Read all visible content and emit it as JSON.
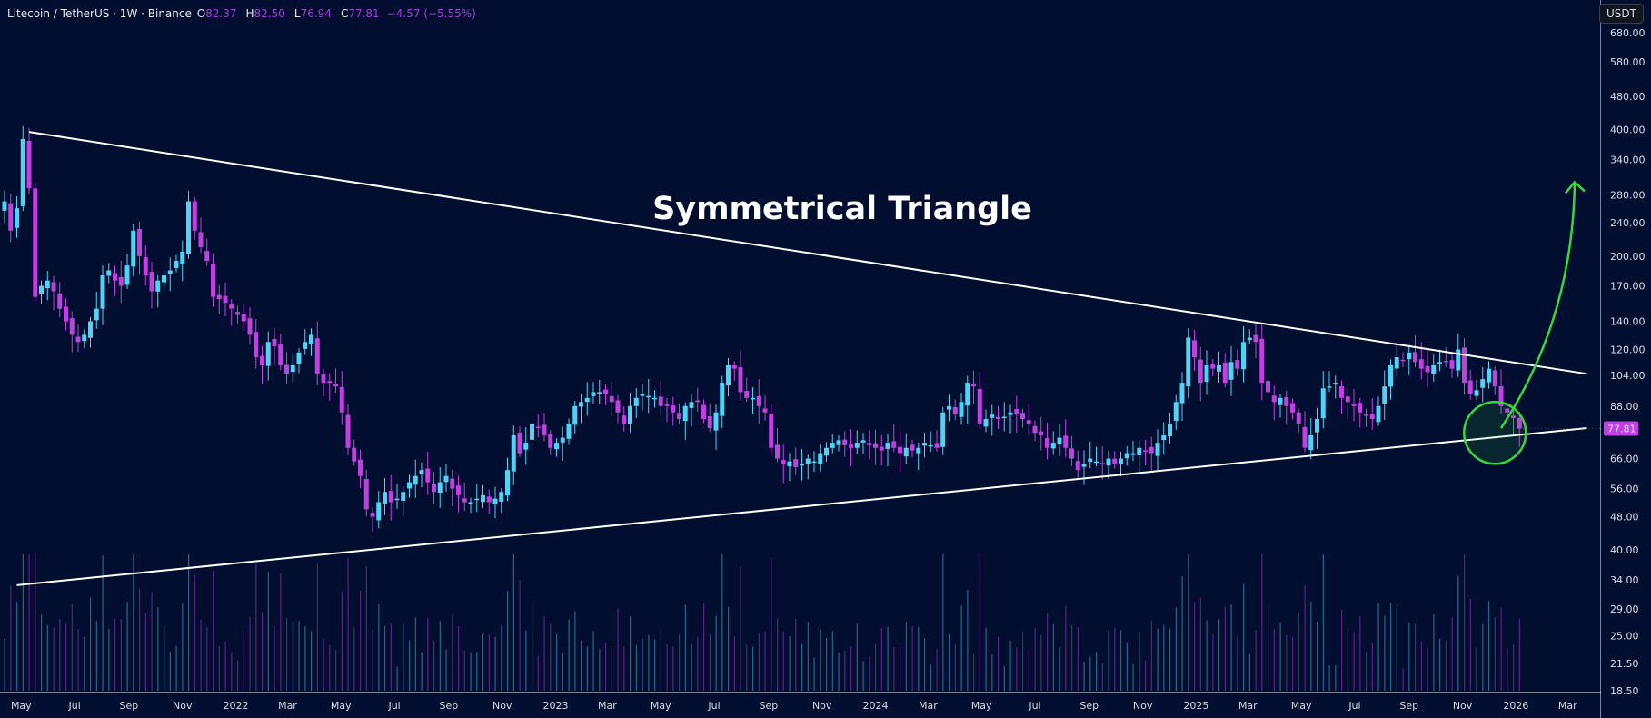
{
  "header": {
    "symbol": "Litecoin / TetherUS · 1W · Binance",
    "o_label": "O",
    "open": "82.37",
    "h_label": "H",
    "high": "82.50",
    "l_label": "L",
    "low": "76.94",
    "c_label": "C",
    "close": "77.81",
    "change": "−4.57 (−5.55%)"
  },
  "currency_button": "USDT",
  "colors": {
    "background": "#020e2f",
    "up": "#4fd3f7",
    "down": "#c23fe3",
    "trendline": "#ffffff",
    "annotation": "#36d83a",
    "last_price_tag": "#c23fe3"
  },
  "chart_data": {
    "type": "candlestick",
    "scale": "log",
    "title": "Symmetrical Triangle",
    "first_week": "2021-04-12",
    "interval": "1W",
    "closes": [
      270,
      230,
      260,
      380,
      290,
      160,
      170,
      175,
      165,
      150,
      140,
      130,
      125,
      130,
      140,
      150,
      180,
      185,
      175,
      170,
      190,
      230,
      200,
      180,
      165,
      175,
      180,
      185,
      195,
      205,
      270,
      230,
      210,
      195,
      160,
      158,
      155,
      150,
      145,
      140,
      130,
      115,
      110,
      125,
      122,
      110,
      105,
      110,
      118,
      125,
      130,
      105,
      100,
      100,
      98,
      85,
      70,
      65,
      60,
      50,
      48,
      52,
      55,
      52,
      53,
      55,
      58,
      60,
      62,
      58,
      55,
      58,
      60,
      56,
      54,
      52,
      52,
      53,
      54,
      52,
      53,
      55,
      62,
      75,
      68,
      72,
      80,
      78,
      75,
      70,
      72,
      74,
      80,
      88,
      90,
      92,
      95,
      95,
      94,
      90,
      85,
      80,
      88,
      92,
      94,
      93,
      92,
      88,
      88,
      85,
      82,
      88,
      90,
      90,
      82,
      78,
      85,
      100,
      110,
      108,
      95,
      92,
      92,
      88,
      85,
      70,
      66,
      64,
      65,
      63,
      64,
      66,
      65,
      68,
      70,
      72,
      73,
      71,
      70,
      72,
      73,
      71,
      70,
      69,
      72,
      70,
      68,
      70,
      69,
      70,
      72,
      71,
      70,
      85,
      88,
      84,
      90,
      100,
      98,
      80,
      82,
      84,
      82,
      83,
      85,
      84,
      82,
      80,
      76,
      75,
      70,
      72,
      74,
      70,
      66,
      62,
      64,
      66,
      65,
      64,
      66,
      64,
      66,
      68,
      68,
      70,
      69,
      68,
      72,
      75,
      80,
      90,
      100,
      128,
      115,
      100,
      110,
      108,
      110,
      100,
      112,
      108,
      125,
      128,
      125,
      100,
      95,
      90,
      92,
      88,
      85,
      80,
      70,
      75,
      82,
      97,
      98,
      100,
      92,
      90,
      88,
      85,
      84,
      82,
      88,
      98,
      110,
      115,
      113,
      118,
      112,
      108,
      106,
      110,
      112,
      112,
      108,
      120,
      100,
      94,
      96,
      102,
      108,
      98,
      88,
      85,
      82.37,
      77.81
    ],
    "last_price": "77.81",
    "y_ticks": [
      "680.00",
      "580.00",
      "480.00",
      "400.00",
      "340.00",
      "280.00",
      "240.00",
      "200.00",
      "170.00",
      "140.00",
      "120.00",
      "104.00",
      "88.00",
      "66.00",
      "56.00",
      "48.00",
      "40.00",
      "34.00",
      "29.00",
      "25.00",
      "21.50",
      "18.50"
    ],
    "x_ticks": [
      {
        "label": "May",
        "date": "2021-05-01"
      },
      {
        "label": "Jul",
        "date": "2021-07-01"
      },
      {
        "label": "Sep",
        "date": "2021-09-01"
      },
      {
        "label": "Nov",
        "date": "2021-11-01"
      },
      {
        "label": "2022",
        "date": "2022-01-01"
      },
      {
        "label": "Mar",
        "date": "2022-03-01"
      },
      {
        "label": "May",
        "date": "2022-05-01"
      },
      {
        "label": "Jul",
        "date": "2022-07-01"
      },
      {
        "label": "Sep",
        "date": "2022-09-01"
      },
      {
        "label": "Nov",
        "date": "2022-11-01"
      },
      {
        "label": "2023",
        "date": "2023-01-01"
      },
      {
        "label": "Mar",
        "date": "2023-03-01"
      },
      {
        "label": "May",
        "date": "2023-05-01"
      },
      {
        "label": "Jul",
        "date": "2023-07-01"
      },
      {
        "label": "Sep",
        "date": "2023-09-01"
      },
      {
        "label": "Nov",
        "date": "2023-11-01"
      },
      {
        "label": "2024",
        "date": "2024-01-01"
      },
      {
        "label": "Mar",
        "date": "2024-03-01"
      },
      {
        "label": "May",
        "date": "2024-05-01"
      },
      {
        "label": "Jul",
        "date": "2024-07-01"
      },
      {
        "label": "Sep",
        "date": "2024-09-01"
      },
      {
        "label": "Nov",
        "date": "2024-11-01"
      },
      {
        "label": "2025",
        "date": "2025-01-01"
      },
      {
        "label": "Mar",
        "date": "2025-03-01"
      },
      {
        "label": "May",
        "date": "2025-05-01"
      },
      {
        "label": "Jul",
        "date": "2025-07-01"
      },
      {
        "label": "Sep",
        "date": "2025-09-01"
      },
      {
        "label": "Nov",
        "date": "2025-11-01"
      },
      {
        "label": "2026",
        "date": "2026-01-01"
      },
      {
        "label": "Mar",
        "date": "2026-03-01"
      }
    ],
    "trendlines": [
      {
        "role": "upper",
        "from": {
          "date": "2021-05-10",
          "price": 395
        },
        "to": {
          "date": "2026-03-23",
          "price": 105
        }
      },
      {
        "role": "lower",
        "from": {
          "date": "2021-04-26",
          "price": 33
        },
        "to": {
          "date": "2026-03-23",
          "price": 78
        }
      }
    ],
    "annotations": [
      {
        "type": "circle",
        "date": "2025-12-08",
        "price": 76
      },
      {
        "type": "arrow",
        "from": {
          "date": "2025-12-15",
          "price": 78
        },
        "to": {
          "date": "2026-03-09",
          "price": 300
        }
      }
    ]
  }
}
